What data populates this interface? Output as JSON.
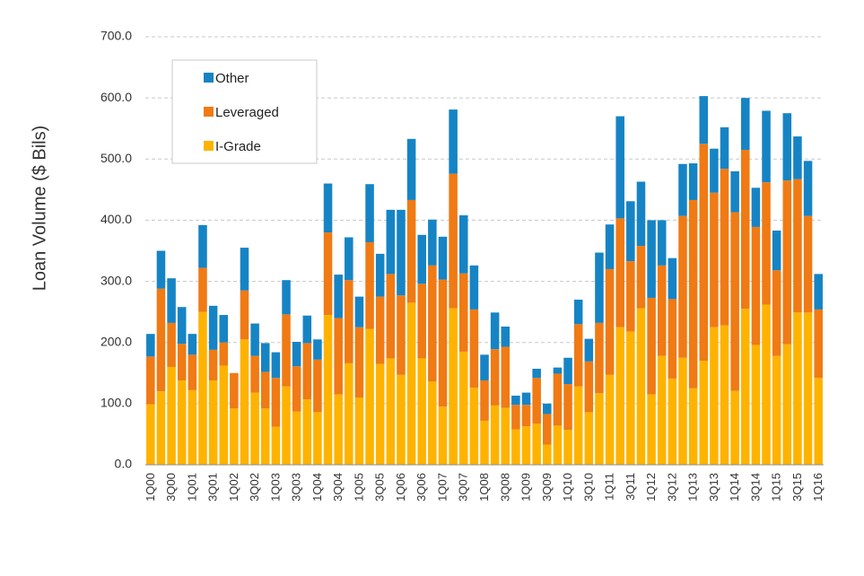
{
  "chart_data": {
    "type": "bar",
    "stacked": true,
    "ylabel": "Loan Volume ($ Bils)",
    "xlabel": "",
    "ylim": [
      0,
      700
    ],
    "yticks": [
      "0.0",
      "100.0",
      "200.0",
      "300.0",
      "400.0",
      "500.0",
      "600.0",
      "700.0"
    ],
    "grid": true,
    "legend_position": "top-left",
    "legend": [
      "Other",
      "Leveraged",
      "I-Grade"
    ],
    "x_tick_labels": [
      "1Q00",
      "3Q00",
      "1Q01",
      "3Q01",
      "1Q02",
      "3Q02",
      "1Q03",
      "3Q03",
      "1Q04",
      "3Q04",
      "1Q05",
      "3Q05",
      "1Q06",
      "3Q06",
      "1Q07",
      "3Q07",
      "1Q08",
      "3Q08",
      "1Q09",
      "3Q09",
      "1Q10",
      "3Q10",
      "1Q11",
      "3Q11",
      "1Q12",
      "3Q12",
      "1Q13",
      "3Q13",
      "1Q14",
      "3Q14",
      "1Q15",
      "3Q15",
      "1Q16"
    ],
    "categories": [
      "1Q00",
      "2Q00",
      "3Q00",
      "4Q00",
      "1Q01",
      "2Q01",
      "3Q01",
      "4Q01",
      "1Q02",
      "2Q02",
      "3Q02",
      "4Q02",
      "1Q03",
      "2Q03",
      "3Q03",
      "4Q03",
      "1Q04",
      "2Q04",
      "3Q04",
      "4Q04",
      "1Q05",
      "2Q05",
      "3Q05",
      "4Q05",
      "1Q06",
      "2Q06",
      "3Q06",
      "4Q06",
      "1Q07",
      "2Q07",
      "3Q07",
      "4Q07",
      "1Q08",
      "2Q08",
      "3Q08",
      "4Q08",
      "1Q09",
      "2Q09",
      "3Q09",
      "4Q09",
      "1Q10",
      "2Q10",
      "3Q10",
      "4Q10",
      "1Q11",
      "2Q11",
      "3Q11",
      "4Q11",
      "1Q12",
      "2Q12",
      "3Q12",
      "4Q12",
      "1Q13",
      "2Q13",
      "3Q13",
      "4Q13",
      "1Q14",
      "2Q14",
      "3Q14",
      "4Q14",
      "1Q15",
      "2Q15",
      "3Q15",
      "4Q15",
      "1Q16"
    ],
    "series": [
      {
        "name": "I-Grade",
        "color": "#FFB300",
        "values": [
          99,
          120,
          160,
          138,
          122,
          250,
          138,
          162,
          92,
          205,
          118,
          92,
          62,
          128,
          87,
          107,
          86,
          245,
          115,
          166,
          110,
          222,
          165,
          174,
          147,
          265,
          174,
          136,
          95,
          256,
          185,
          126,
          72,
          97,
          93,
          58,
          63,
          67,
          33,
          64,
          57,
          128,
          86,
          117,
          147,
          225,
          218,
          256,
          115,
          178,
          141,
          175,
          125,
          170,
          225,
          228,
          121,
          255,
          196,
          262,
          178,
          197,
          249,
          249,
          142
        ]
      },
      {
        "name": "Leveraged",
        "color": "#F07A14",
        "values": [
          78,
          168,
          72,
          60,
          58,
          72,
          50,
          38,
          58,
          80,
          60,
          60,
          80,
          118,
          74,
          92,
          86,
          135,
          125,
          136,
          115,
          142,
          110,
          138,
          130,
          168,
          122,
          190,
          208,
          220,
          128,
          128,
          66,
          92,
          100,
          40,
          35,
          75,
          50,
          85,
          75,
          102,
          83,
          115,
          173,
          178,
          115,
          102,
          158,
          148,
          130,
          232,
          308,
          355,
          220,
          256,
          292,
          260,
          193,
          200,
          140,
          268,
          218,
          158,
          112
        ]
      },
      {
        "name": "Other",
        "color": "#1684C4",
        "values": [
          37,
          62,
          73,
          60,
          34,
          70,
          72,
          45,
          0,
          70,
          53,
          47,
          42,
          56,
          40,
          45,
          33,
          80,
          71,
          70,
          50,
          95,
          70,
          105,
          140,
          100,
          80,
          75,
          70,
          105,
          95,
          72,
          42,
          60,
          33,
          15,
          20,
          15,
          17,
          10,
          43,
          40,
          37,
          115,
          73,
          167,
          98,
          105,
          127,
          74,
          67,
          85,
          60,
          78,
          72,
          68,
          67,
          85,
          64,
          117,
          65,
          110,
          70,
          90,
          58
        ]
      }
    ]
  }
}
